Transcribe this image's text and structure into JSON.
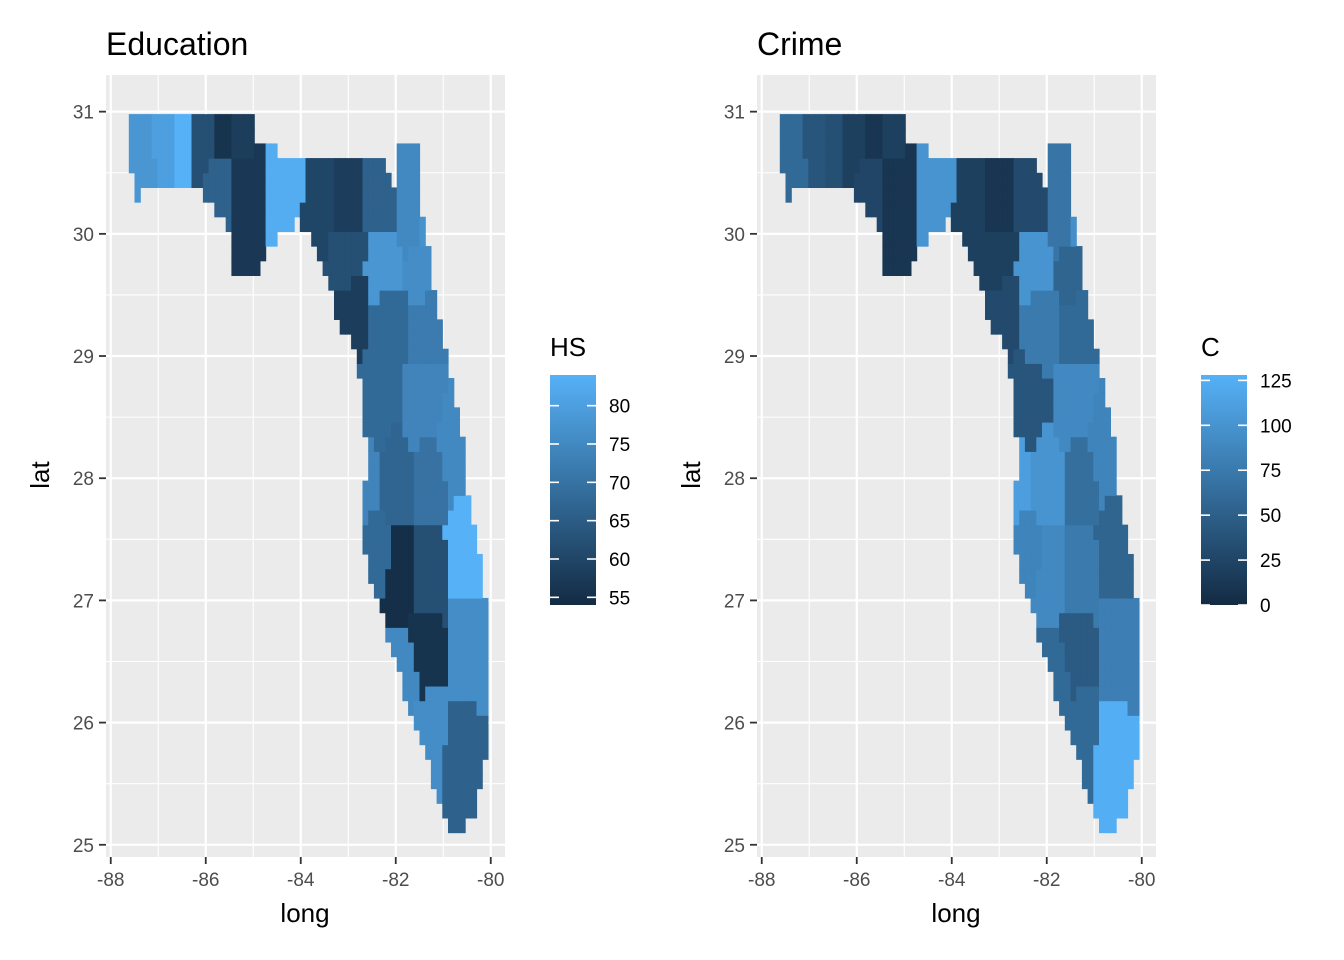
{
  "panels": [
    {
      "id": "education",
      "title": "Education",
      "xlabel": "long",
      "ylabel": "lat",
      "x_ticks": [
        "-88",
        "-86",
        "-84",
        "-82",
        "-80"
      ],
      "y_ticks": [
        "25",
        "26",
        "27",
        "28",
        "29",
        "30",
        "31"
      ],
      "legend": {
        "title": "HS",
        "ticks": [
          "55",
          "60",
          "65",
          "70",
          "75",
          "80"
        ],
        "range": [
          54,
          84
        ]
      }
    },
    {
      "id": "crime",
      "title": "Crime",
      "xlabel": "long",
      "ylabel": "lat",
      "x_ticks": [
        "-88",
        "-86",
        "-84",
        "-82",
        "-80"
      ],
      "y_ticks": [
        "25",
        "26",
        "27",
        "28",
        "29",
        "30",
        "31"
      ],
      "legend": {
        "title": "C",
        "ticks": [
          "0",
          "25",
          "50",
          "75",
          "100",
          "125"
        ],
        "range": [
          0,
          128
        ]
      }
    }
  ],
  "chart_data": [
    {
      "type": "heatmap",
      "title": "Education",
      "xlabel": "long",
      "ylabel": "lat",
      "xlim": [
        -88.1,
        -79.7
      ],
      "ylim": [
        24.9,
        31.3
      ],
      "legend_title": "HS",
      "legend_placement": "right",
      "color_low": "#132B43",
      "color_high": "#56B1F7",
      "grid": true,
      "regions": [
        {
          "lon": -87.4,
          "lat": 30.7,
          "value": 78
        },
        {
          "lon": -86.8,
          "lat": 30.8,
          "value": 80
        },
        {
          "lon": -86.6,
          "lat": 30.8,
          "value": 84
        },
        {
          "lon": -86.0,
          "lat": 30.8,
          "value": 62
        },
        {
          "lon": -85.6,
          "lat": 30.8,
          "value": 56
        },
        {
          "lon": -85.3,
          "lat": 30.8,
          "value": 58
        },
        {
          "lon": -85.7,
          "lat": 30.4,
          "value": 66
        },
        {
          "lon": -85.2,
          "lat": 30.4,
          "value": 57
        },
        {
          "lon": -84.3,
          "lat": 30.4,
          "value": 83
        },
        {
          "lon": -83.6,
          "lat": 30.3,
          "value": 60
        },
        {
          "lon": -83.0,
          "lat": 30.3,
          "value": 58
        },
        {
          "lon": -82.3,
          "lat": 30.3,
          "value": 66
        },
        {
          "lon": -81.7,
          "lat": 30.2,
          "value": 75
        },
        {
          "lon": -81.4,
          "lat": 30.2,
          "value": 77
        },
        {
          "lon": -82.3,
          "lat": 29.7,
          "value": 78
        },
        {
          "lon": -81.4,
          "lat": 29.7,
          "value": 76
        },
        {
          "lon": -83.0,
          "lat": 29.8,
          "value": 62
        },
        {
          "lon": -82.9,
          "lat": 29.4,
          "value": 58
        },
        {
          "lon": -82.2,
          "lat": 29.3,
          "value": 68
        },
        {
          "lon": -81.3,
          "lat": 29.3,
          "value": 72
        },
        {
          "lon": -82.4,
          "lat": 28.6,
          "value": 68
        },
        {
          "lon": -81.4,
          "lat": 28.6,
          "value": 74
        },
        {
          "lon": -80.8,
          "lat": 28.3,
          "value": 75
        },
        {
          "lon": -82.6,
          "lat": 28.0,
          "value": 74
        },
        {
          "lon": -82.0,
          "lat": 28.0,
          "value": 67
        },
        {
          "lon": -81.3,
          "lat": 28.0,
          "value": 70
        },
        {
          "lon": -80.5,
          "lat": 27.4,
          "value": 84
        },
        {
          "lon": -81.9,
          "lat": 27.2,
          "value": 55
        },
        {
          "lon": -81.3,
          "lat": 27.2,
          "value": 62
        },
        {
          "lon": -82.4,
          "lat": 27.4,
          "value": 68
        },
        {
          "lon": -81.4,
          "lat": 26.6,
          "value": 56
        },
        {
          "lon": -81.8,
          "lat": 26.4,
          "value": 75
        },
        {
          "lon": -80.5,
          "lat": 26.6,
          "value": 76
        },
        {
          "lon": -80.6,
          "lat": 25.7,
          "value": 66
        },
        {
          "lon": -81.3,
          "lat": 25.9,
          "value": 76
        }
      ]
    },
    {
      "type": "heatmap",
      "title": "Crime",
      "xlabel": "long",
      "ylabel": "lat",
      "xlim": [
        -88.1,
        -79.7
      ],
      "ylim": [
        24.9,
        31.3
      ],
      "legend_title": "C",
      "legend_placement": "right",
      "color_low": "#132B43",
      "color_high": "#56B1F7",
      "grid": true,
      "regions": [
        {
          "lon": -87.4,
          "lat": 30.7,
          "value": 60
        },
        {
          "lon": -86.8,
          "lat": 30.8,
          "value": 40
        },
        {
          "lon": -86.6,
          "lat": 30.8,
          "value": 35
        },
        {
          "lon": -86.0,
          "lat": 30.8,
          "value": 20
        },
        {
          "lon": -85.6,
          "lat": 30.8,
          "value": 10
        },
        {
          "lon": -85.3,
          "lat": 30.8,
          "value": 20
        },
        {
          "lon": -85.7,
          "lat": 30.4,
          "value": 25
        },
        {
          "lon": -85.2,
          "lat": 30.4,
          "value": 10
        },
        {
          "lon": -84.3,
          "lat": 30.4,
          "value": 100
        },
        {
          "lon": -83.6,
          "lat": 30.3,
          "value": 20
        },
        {
          "lon": -83.0,
          "lat": 30.3,
          "value": 10
        },
        {
          "lon": -82.3,
          "lat": 30.3,
          "value": 30
        },
        {
          "lon": -81.7,
          "lat": 30.2,
          "value": 70
        },
        {
          "lon": -81.4,
          "lat": 30.2,
          "value": 95
        },
        {
          "lon": -82.3,
          "lat": 29.7,
          "value": 100
        },
        {
          "lon": -81.4,
          "lat": 29.7,
          "value": 55
        },
        {
          "lon": -83.0,
          "lat": 29.8,
          "value": 20
        },
        {
          "lon": -82.9,
          "lat": 29.4,
          "value": 30
        },
        {
          "lon": -82.2,
          "lat": 29.3,
          "value": 75
        },
        {
          "lon": -81.3,
          "lat": 29.3,
          "value": 60
        },
        {
          "lon": -82.4,
          "lat": 28.6,
          "value": 40
        },
        {
          "lon": -81.4,
          "lat": 28.6,
          "value": 90
        },
        {
          "lon": -80.8,
          "lat": 28.3,
          "value": 85
        },
        {
          "lon": -82.6,
          "lat": 28.0,
          "value": 110
        },
        {
          "lon": -82.0,
          "lat": 28.0,
          "value": 100
        },
        {
          "lon": -81.3,
          "lat": 28.0,
          "value": 65
        },
        {
          "lon": -80.5,
          "lat": 27.4,
          "value": 55
        },
        {
          "lon": -81.9,
          "lat": 27.2,
          "value": 90
        },
        {
          "lon": -81.3,
          "lat": 27.2,
          "value": 75
        },
        {
          "lon": -82.4,
          "lat": 27.4,
          "value": 85
        },
        {
          "lon": -81.4,
          "lat": 26.6,
          "value": 45
        },
        {
          "lon": -81.8,
          "lat": 26.4,
          "value": 60
        },
        {
          "lon": -80.5,
          "lat": 26.6,
          "value": 80
        },
        {
          "lon": -80.6,
          "lat": 25.7,
          "value": 125
        },
        {
          "lon": -81.3,
          "lat": 25.9,
          "value": 60
        }
      ]
    }
  ]
}
